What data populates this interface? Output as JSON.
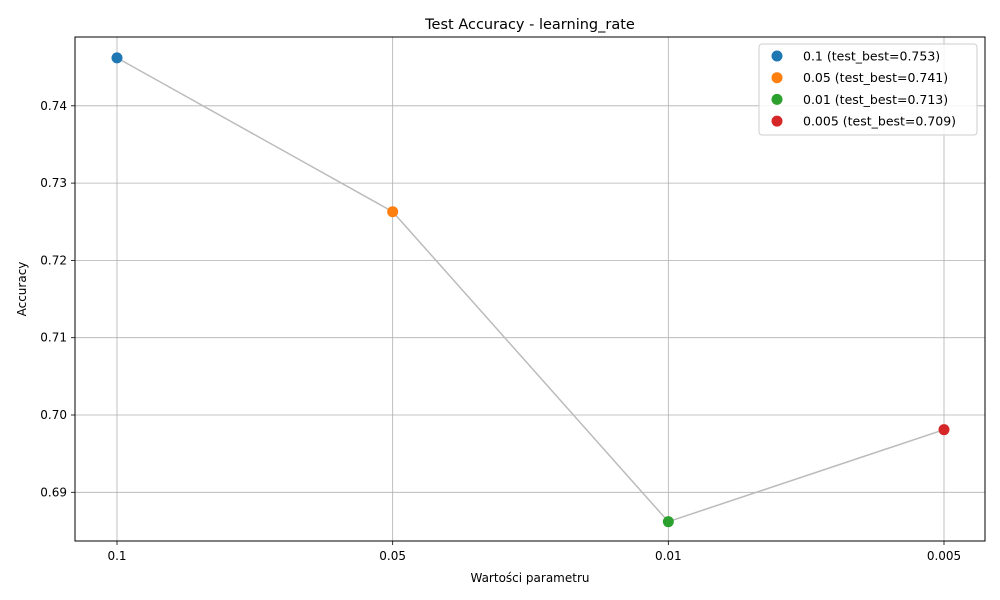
{
  "chart_data": {
    "type": "line",
    "title": "Test Accuracy - learning_rate",
    "xlabel": "Wartości parametru",
    "ylabel": "Accuracy",
    "categories": [
      "0.1",
      "0.05",
      "0.01",
      "0.005"
    ],
    "values": [
      0.7462,
      0.7263,
      0.6862,
      0.6981
    ],
    "ylim": [
      0.6837,
      0.7489
    ],
    "yticks": [
      0.69,
      0.7,
      0.71,
      0.72,
      0.73,
      0.74
    ],
    "ytick_labels": [
      "0.69",
      "0.70",
      "0.71",
      "0.72",
      "0.73",
      "0.74"
    ],
    "grid": true,
    "line_color": "#bbbbbb",
    "legend_position": "top-right",
    "points": [
      {
        "label": "0.1 (test_best=0.753)",
        "color": "#1f77b4"
      },
      {
        "label": "0.05 (test_best=0.741)",
        "color": "#ff7f0e"
      },
      {
        "label": "0.01 (test_best=0.713)",
        "color": "#2ca02c"
      },
      {
        "label": "0.005 (test_best=0.709)",
        "color": "#d62728"
      }
    ]
  }
}
